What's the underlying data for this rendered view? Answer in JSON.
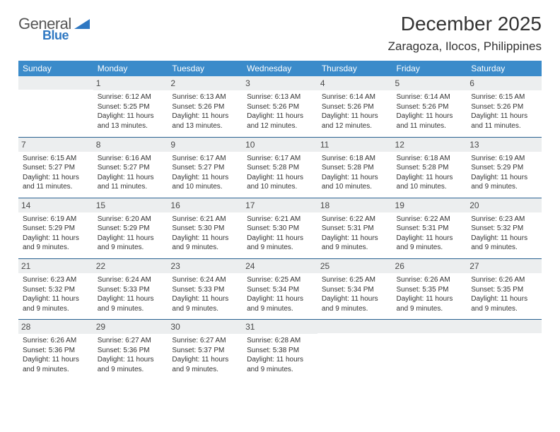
{
  "logo": {
    "word1": "General",
    "word2": "Blue"
  },
  "title": "December 2025",
  "subtitle": "Zaragoza, Ilocos, Philippines",
  "colors": {
    "header_bg": "#3b8bca",
    "header_fg": "#ffffff",
    "daynum_bg": "#eceeef",
    "rule": "#286090",
    "logo_blue": "#2f78c2"
  },
  "day_headers": [
    "Sunday",
    "Monday",
    "Tuesday",
    "Wednesday",
    "Thursday",
    "Friday",
    "Saturday"
  ],
  "weeks": [
    [
      {
        "num": "",
        "lines": []
      },
      {
        "num": "1",
        "lines": [
          "Sunrise: 6:12 AM",
          "Sunset: 5:25 PM",
          "Daylight: 11 hours and 13 minutes."
        ]
      },
      {
        "num": "2",
        "lines": [
          "Sunrise: 6:13 AM",
          "Sunset: 5:26 PM",
          "Daylight: 11 hours and 13 minutes."
        ]
      },
      {
        "num": "3",
        "lines": [
          "Sunrise: 6:13 AM",
          "Sunset: 5:26 PM",
          "Daylight: 11 hours and 12 minutes."
        ]
      },
      {
        "num": "4",
        "lines": [
          "Sunrise: 6:14 AM",
          "Sunset: 5:26 PM",
          "Daylight: 11 hours and 12 minutes."
        ]
      },
      {
        "num": "5",
        "lines": [
          "Sunrise: 6:14 AM",
          "Sunset: 5:26 PM",
          "Daylight: 11 hours and 11 minutes."
        ]
      },
      {
        "num": "6",
        "lines": [
          "Sunrise: 6:15 AM",
          "Sunset: 5:26 PM",
          "Daylight: 11 hours and 11 minutes."
        ]
      }
    ],
    [
      {
        "num": "7",
        "lines": [
          "Sunrise: 6:15 AM",
          "Sunset: 5:27 PM",
          "Daylight: 11 hours and 11 minutes."
        ]
      },
      {
        "num": "8",
        "lines": [
          "Sunrise: 6:16 AM",
          "Sunset: 5:27 PM",
          "Daylight: 11 hours and 11 minutes."
        ]
      },
      {
        "num": "9",
        "lines": [
          "Sunrise: 6:17 AM",
          "Sunset: 5:27 PM",
          "Daylight: 11 hours and 10 minutes."
        ]
      },
      {
        "num": "10",
        "lines": [
          "Sunrise: 6:17 AM",
          "Sunset: 5:28 PM",
          "Daylight: 11 hours and 10 minutes."
        ]
      },
      {
        "num": "11",
        "lines": [
          "Sunrise: 6:18 AM",
          "Sunset: 5:28 PM",
          "Daylight: 11 hours and 10 minutes."
        ]
      },
      {
        "num": "12",
        "lines": [
          "Sunrise: 6:18 AM",
          "Sunset: 5:28 PM",
          "Daylight: 11 hours and 10 minutes."
        ]
      },
      {
        "num": "13",
        "lines": [
          "Sunrise: 6:19 AM",
          "Sunset: 5:29 PM",
          "Daylight: 11 hours and 9 minutes."
        ]
      }
    ],
    [
      {
        "num": "14",
        "lines": [
          "Sunrise: 6:19 AM",
          "Sunset: 5:29 PM",
          "Daylight: 11 hours and 9 minutes."
        ]
      },
      {
        "num": "15",
        "lines": [
          "Sunrise: 6:20 AM",
          "Sunset: 5:29 PM",
          "Daylight: 11 hours and 9 minutes."
        ]
      },
      {
        "num": "16",
        "lines": [
          "Sunrise: 6:21 AM",
          "Sunset: 5:30 PM",
          "Daylight: 11 hours and 9 minutes."
        ]
      },
      {
        "num": "17",
        "lines": [
          "Sunrise: 6:21 AM",
          "Sunset: 5:30 PM",
          "Daylight: 11 hours and 9 minutes."
        ]
      },
      {
        "num": "18",
        "lines": [
          "Sunrise: 6:22 AM",
          "Sunset: 5:31 PM",
          "Daylight: 11 hours and 9 minutes."
        ]
      },
      {
        "num": "19",
        "lines": [
          "Sunrise: 6:22 AM",
          "Sunset: 5:31 PM",
          "Daylight: 11 hours and 9 minutes."
        ]
      },
      {
        "num": "20",
        "lines": [
          "Sunrise: 6:23 AM",
          "Sunset: 5:32 PM",
          "Daylight: 11 hours and 9 minutes."
        ]
      }
    ],
    [
      {
        "num": "21",
        "lines": [
          "Sunrise: 6:23 AM",
          "Sunset: 5:32 PM",
          "Daylight: 11 hours and 9 minutes."
        ]
      },
      {
        "num": "22",
        "lines": [
          "Sunrise: 6:24 AM",
          "Sunset: 5:33 PM",
          "Daylight: 11 hours and 9 minutes."
        ]
      },
      {
        "num": "23",
        "lines": [
          "Sunrise: 6:24 AM",
          "Sunset: 5:33 PM",
          "Daylight: 11 hours and 9 minutes."
        ]
      },
      {
        "num": "24",
        "lines": [
          "Sunrise: 6:25 AM",
          "Sunset: 5:34 PM",
          "Daylight: 11 hours and 9 minutes."
        ]
      },
      {
        "num": "25",
        "lines": [
          "Sunrise: 6:25 AM",
          "Sunset: 5:34 PM",
          "Daylight: 11 hours and 9 minutes."
        ]
      },
      {
        "num": "26",
        "lines": [
          "Sunrise: 6:26 AM",
          "Sunset: 5:35 PM",
          "Daylight: 11 hours and 9 minutes."
        ]
      },
      {
        "num": "27",
        "lines": [
          "Sunrise: 6:26 AM",
          "Sunset: 5:35 PM",
          "Daylight: 11 hours and 9 minutes."
        ]
      }
    ],
    [
      {
        "num": "28",
        "lines": [
          "Sunrise: 6:26 AM",
          "Sunset: 5:36 PM",
          "Daylight: 11 hours and 9 minutes."
        ]
      },
      {
        "num": "29",
        "lines": [
          "Sunrise: 6:27 AM",
          "Sunset: 5:36 PM",
          "Daylight: 11 hours and 9 minutes."
        ]
      },
      {
        "num": "30",
        "lines": [
          "Sunrise: 6:27 AM",
          "Sunset: 5:37 PM",
          "Daylight: 11 hours and 9 minutes."
        ]
      },
      {
        "num": "31",
        "lines": [
          "Sunrise: 6:28 AM",
          "Sunset: 5:38 PM",
          "Daylight: 11 hours and 9 minutes."
        ]
      },
      {
        "num": "",
        "lines": []
      },
      {
        "num": "",
        "lines": []
      },
      {
        "num": "",
        "lines": []
      }
    ]
  ]
}
